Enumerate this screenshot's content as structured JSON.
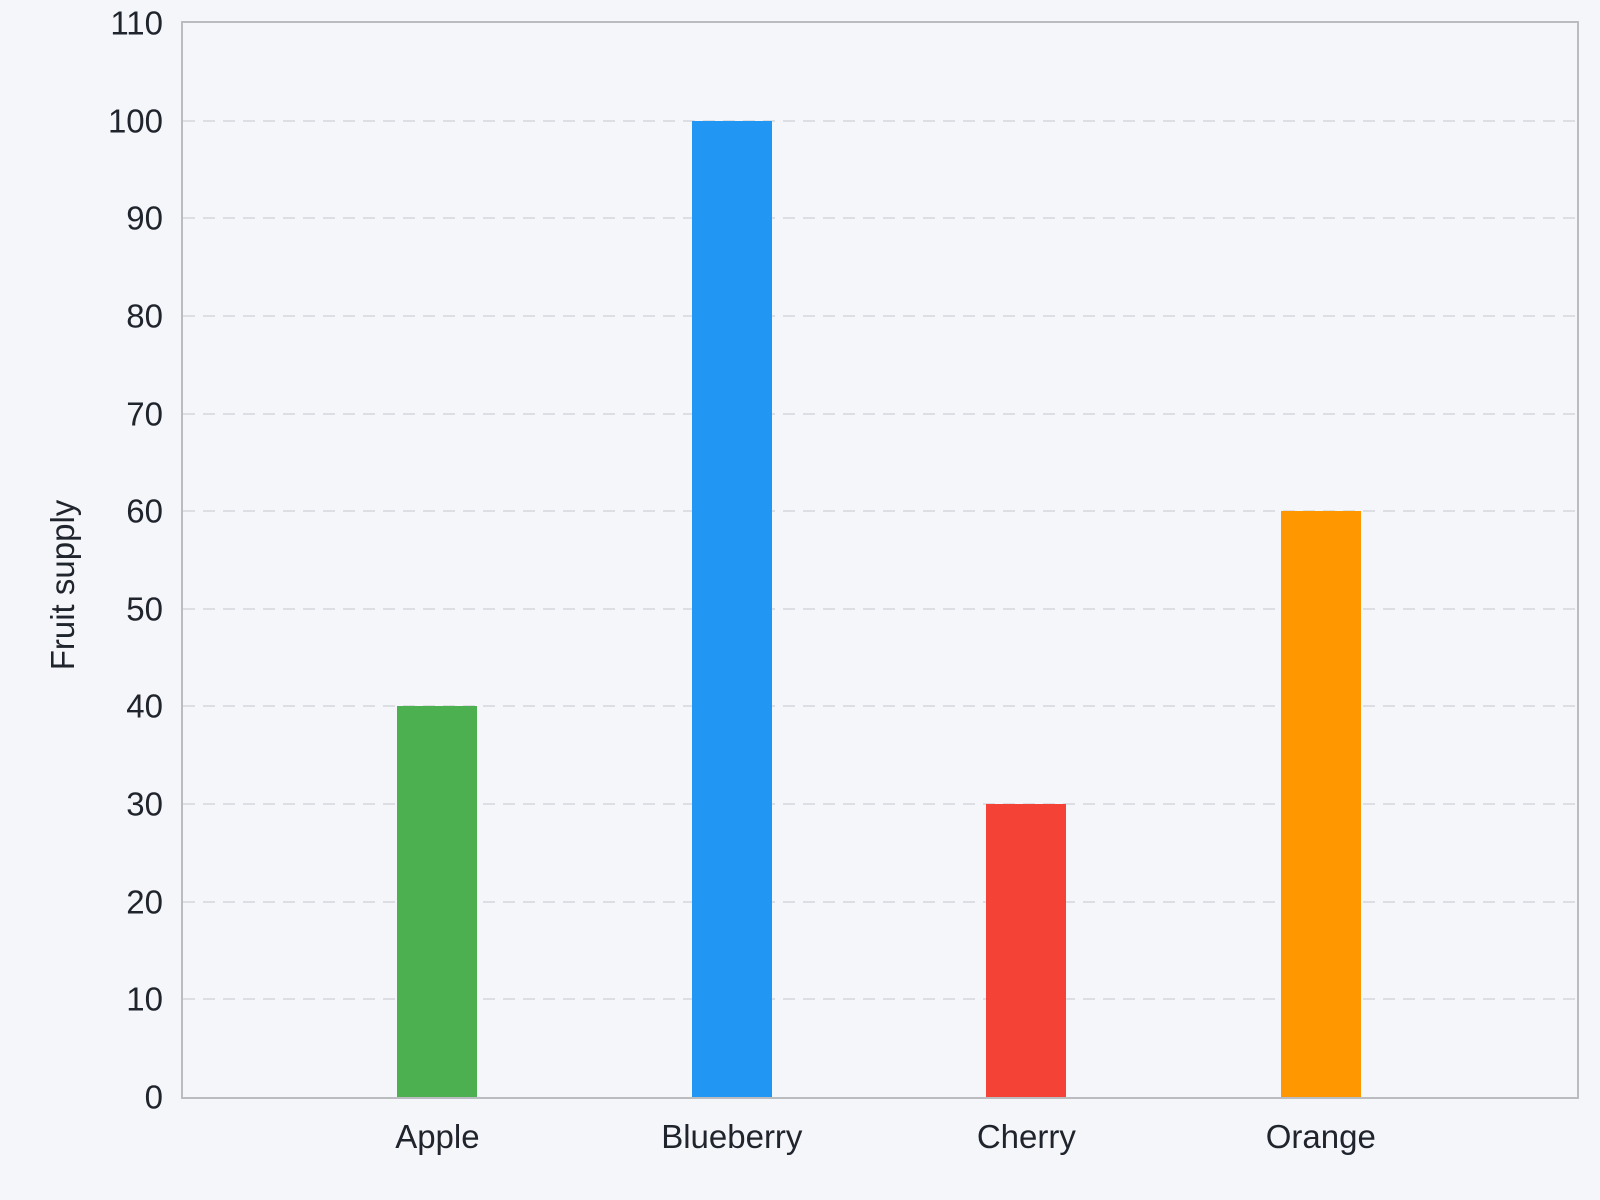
{
  "chart_data": {
    "type": "bar",
    "title": "",
    "xlabel": "",
    "ylabel": "Fruit supply",
    "categories": [
      "Apple",
      "Blueberry",
      "Cherry",
      "Orange"
    ],
    "values": [
      40,
      100,
      30,
      60
    ],
    "bar_colors": [
      "#4caf50",
      "#2196f3",
      "#f44336",
      "#ff9800"
    ],
    "ylim": [
      0,
      110
    ],
    "yticks": [
      0,
      10,
      20,
      30,
      40,
      50,
      60,
      70,
      80,
      90,
      100,
      110
    ],
    "grid": "horizontal-dashed",
    "legend_position": "none"
  },
  "colors": {
    "background": "#f5f6fa",
    "plot_border": "#babcc0",
    "gridline": "#dcdee3",
    "label_text": "#20242c"
  }
}
